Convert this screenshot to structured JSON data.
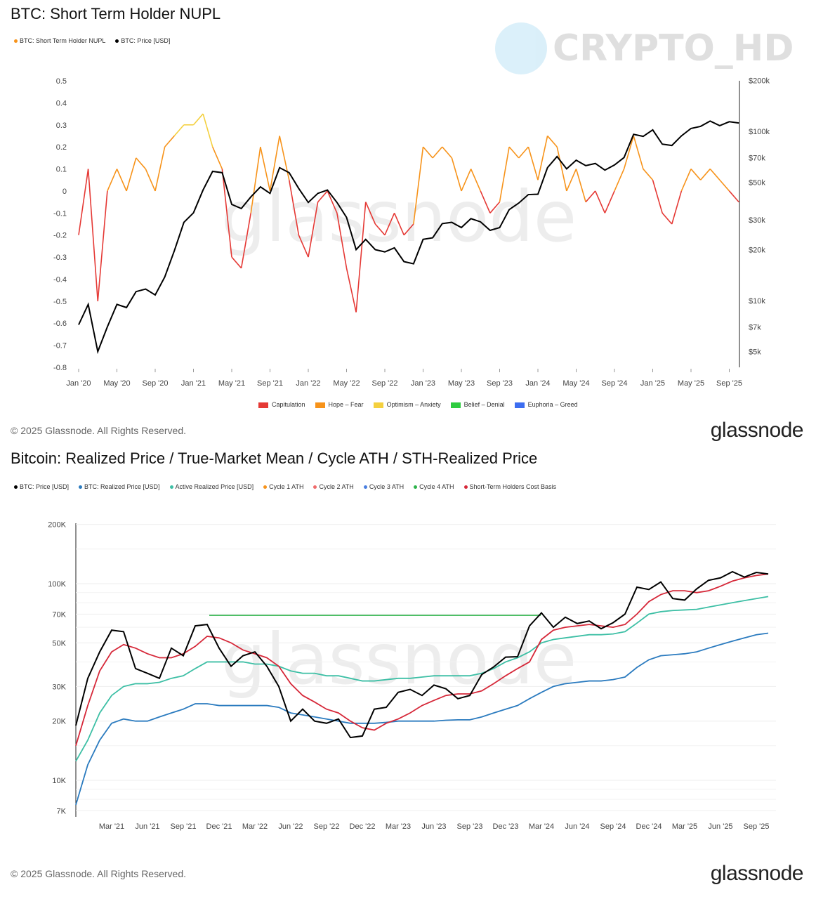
{
  "watermark": "CRYPTO_HD",
  "brand": "glassnode",
  "chart_data": [
    {
      "type": "line",
      "title": "BTC: Short Term Holder NUPL",
      "copyright": "© 2025 Glassnode. All Rights Reserved.",
      "legend": [
        {
          "name": "BTC: Short Term Holder NUPL",
          "color": "#f7931a"
        },
        {
          "name": "BTC: Price [USD]",
          "color": "#000000"
        }
      ],
      "zones": [
        {
          "name": "Capitulation",
          "color": "#e53935",
          "range": [
            -1,
            0
          ]
        },
        {
          "name": "Hope – Fear",
          "color": "#f7931a",
          "range": [
            0,
            0.25
          ]
        },
        {
          "name": "Optimism – Anxiety",
          "color": "#f4d03f",
          "range": [
            0.25,
            0.5
          ]
        },
        {
          "name": "Belief – Denial",
          "color": "#2ecc40",
          "range": [
            0.5,
            0.75
          ]
        },
        {
          "name": "Euphoria – Greed",
          "color": "#3c6df0",
          "range": [
            0.75,
            1
          ]
        }
      ],
      "x_ticks": [
        "Jan '20",
        "May '20",
        "Sep '20",
        "Jan '21",
        "May '21",
        "Sep '21",
        "Jan '22",
        "May '22",
        "Sep '22",
        "Jan '23",
        "May '23",
        "Sep '23",
        "Jan '24",
        "May '24",
        "Sep '24",
        "Jan '25",
        "May '25",
        "Sep '25"
      ],
      "y_left_ticks": [
        "0.5",
        "0.4",
        "0.3",
        "0.2",
        "0.1",
        "0",
        "-0.1",
        "-0.2",
        "-0.3",
        "-0.4",
        "-0.5",
        "-0.6",
        "-0.7",
        "-0.8"
      ],
      "y_left_range": [
        -0.8,
        0.5
      ],
      "y_right_ticks": [
        {
          "label": "$200k",
          "value": 200000
        },
        {
          "label": "$100k",
          "value": 100000
        },
        {
          "label": "$70k",
          "value": 70000
        },
        {
          "label": "$50k",
          "value": 50000
        },
        {
          "label": "$30k",
          "value": 30000
        },
        {
          "label": "$20k",
          "value": 20000
        },
        {
          "label": "$10k",
          "value": 10000
        },
        {
          "label": "$7k",
          "value": 7000
        },
        {
          "label": "$5k",
          "value": 5000
        }
      ],
      "y_right_scale": "log",
      "x_start": "2020-01",
      "x_step": "month",
      "nupl": [
        -0.2,
        0.1,
        -0.5,
        0.0,
        0.1,
        0.0,
        0.15,
        0.1,
        0.0,
        0.2,
        0.25,
        0.3,
        0.3,
        0.35,
        0.2,
        0.1,
        -0.3,
        -0.35,
        -0.1,
        0.2,
        0.0,
        0.25,
        0.05,
        -0.2,
        -0.3,
        -0.05,
        0.0,
        -0.1,
        -0.35,
        -0.55,
        -0.05,
        -0.15,
        -0.2,
        -0.1,
        -0.2,
        -0.15,
        0.2,
        0.15,
        0.2,
        0.15,
        0.0,
        0.1,
        0.0,
        -0.1,
        -0.05,
        0.2,
        0.15,
        0.2,
        0.05,
        0.25,
        0.2,
        0.0,
        0.1,
        -0.05,
        0.0,
        -0.1,
        0.0,
        0.1,
        0.25,
        0.1,
        0.05,
        -0.1,
        -0.15,
        0.0,
        0.1,
        0.05,
        0.1,
        0.05,
        0.0,
        -0.05
      ],
      "price": [
        7200,
        9500,
        5000,
        7000,
        9500,
        9100,
        11300,
        11700,
        10800,
        13800,
        19700,
        29000,
        33000,
        45000,
        58000,
        57000,
        37000,
        35000,
        41000,
        47000,
        43000,
        61000,
        57000,
        46000,
        38000,
        43000,
        45000,
        38000,
        31000,
        20000,
        23000,
        20000,
        19400,
        20500,
        17000,
        16500,
        23000,
        23500,
        28500,
        29000,
        27000,
        30500,
        29200,
        26000,
        27000,
        34500,
        37700,
        42300,
        42500,
        61000,
        71000,
        60000,
        67500,
        62700,
        64600,
        59000,
        63300,
        70000,
        96000,
        93400,
        102000,
        84000,
        82500,
        94000,
        104000,
        107000,
        115000,
        108000,
        114000,
        112000
      ]
    },
    {
      "type": "line",
      "title": "Bitcoin: Realized Price / True-Market Mean / Cycle ATH / STH-Realized Price",
      "copyright": "© 2025 Glassnode. All Rights Reserved.",
      "legend": [
        {
          "name": "BTC: Price [USD]",
          "color": "#000000"
        },
        {
          "name": "BTC: Realized Price [USD]",
          "color": "#2b7bbf"
        },
        {
          "name": "Active Realized Price [USD]",
          "color": "#3dbfa5"
        },
        {
          "name": "Cycle 1 ATH",
          "color": "#f7931a"
        },
        {
          "name": "Cycle 2 ATH",
          "color": "#f06b6b"
        },
        {
          "name": "Cycle 3 ATH",
          "color": "#4a7fe0"
        },
        {
          "name": "Cycle 4 ATH",
          "color": "#2db34a"
        },
        {
          "name": "Short-Term Holders Cost Basis",
          "color": "#d62839"
        }
      ],
      "x_ticks": [
        "Mar '21",
        "Jun '21",
        "Sep '21",
        "Dec '21",
        "Mar '22",
        "Jun '22",
        "Sep '22",
        "Dec '22",
        "Mar '23",
        "Jun '23",
        "Sep '23",
        "Dec '23",
        "Mar '24",
        "Jun '24",
        "Sep '24",
        "Dec '24",
        "Mar '25",
        "Jun '25",
        "Sep '25"
      ],
      "y_ticks": [
        {
          "label": "200K",
          "value": 200000
        },
        {
          "label": "100K",
          "value": 100000
        },
        {
          "label": "70K",
          "value": 70000
        },
        {
          "label": "50K",
          "value": 50000
        },
        {
          "label": "30K",
          "value": 30000
        },
        {
          "label": "20K",
          "value": 20000
        },
        {
          "label": "10K",
          "value": 10000
        },
        {
          "label": "7K",
          "value": 7000
        }
      ],
      "y_scale": "log",
      "x_start": "2020-12",
      "x_step": "month",
      "cycle4_ath": {
        "value": 69000,
        "from": "2021-11",
        "to": "2024-03"
      },
      "series": [
        {
          "name": "BTC: Price [USD]",
          "color": "#000000",
          "values": [
            19000,
            33000,
            45000,
            58000,
            57000,
            37000,
            35000,
            33000,
            47000,
            43000,
            61000,
            62000,
            47000,
            38000,
            43000,
            45000,
            38000,
            30000,
            20000,
            23000,
            20000,
            19500,
            20500,
            16500,
            16800,
            23000,
            23500,
            28000,
            29000,
            27000,
            30500,
            29200,
            26000,
            27000,
            34500,
            37700,
            42300,
            42500,
            61000,
            71000,
            60000,
            67500,
            62700,
            64600,
            59000,
            63300,
            70000,
            96000,
            93400,
            102000,
            84000,
            82500,
            94000,
            104000,
            107000,
            115000,
            108000,
            114000,
            112000
          ]
        },
        {
          "name": "BTC: Realized Price [USD]",
          "color": "#2b7bbf",
          "values": [
            7500,
            12000,
            16000,
            19500,
            20500,
            20000,
            20000,
            21000,
            22000,
            23000,
            24500,
            24500,
            24000,
            24000,
            24000,
            24000,
            24000,
            23500,
            22000,
            21500,
            21000,
            20500,
            20000,
            19500,
            19500,
            19500,
            19700,
            20000,
            20000,
            20000,
            20000,
            20200,
            20300,
            20300,
            21000,
            22000,
            23000,
            24000,
            26000,
            28000,
            30000,
            31000,
            31500,
            32000,
            32000,
            32500,
            33500,
            37500,
            41000,
            43000,
            43500,
            44000,
            45000,
            47000,
            49000,
            51000,
            53000,
            55000,
            56000
          ]
        },
        {
          "name": "Active Realized Price [USD]",
          "color": "#3dbfa5",
          "values": [
            12500,
            16000,
            22000,
            27000,
            30000,
            31000,
            31000,
            31500,
            33000,
            34000,
            37000,
            40000,
            40000,
            40000,
            40000,
            39000,
            39000,
            38000,
            36000,
            35000,
            35000,
            34000,
            34000,
            33000,
            32000,
            32000,
            32500,
            33000,
            33000,
            33500,
            34000,
            34000,
            34000,
            34000,
            35000,
            37000,
            40000,
            42000,
            45000,
            50000,
            52000,
            53000,
            54000,
            55000,
            55000,
            55500,
            57000,
            63000,
            70000,
            72000,
            73000,
            73500,
            74000,
            76000,
            78000,
            80000,
            82000,
            84000,
            86000
          ]
        },
        {
          "name": "Short-Term Holders Cost Basis",
          "color": "#d62839",
          "values": [
            15000,
            24000,
            36000,
            45000,
            49000,
            47000,
            44000,
            42000,
            42000,
            44000,
            48000,
            54000,
            53000,
            50000,
            46000,
            44000,
            42000,
            38000,
            31000,
            27000,
            25000,
            23000,
            22000,
            20000,
            18500,
            18000,
            19500,
            20500,
            22000,
            24000,
            25500,
            27000,
            27500,
            27500,
            28500,
            31000,
            34000,
            37000,
            40000,
            52000,
            58000,
            60000,
            61000,
            62000,
            61000,
            60000,
            62000,
            70000,
            81000,
            88000,
            92000,
            92000,
            90000,
            92000,
            97000,
            103000,
            107000,
            110000,
            112000
          ]
        }
      ]
    }
  ]
}
